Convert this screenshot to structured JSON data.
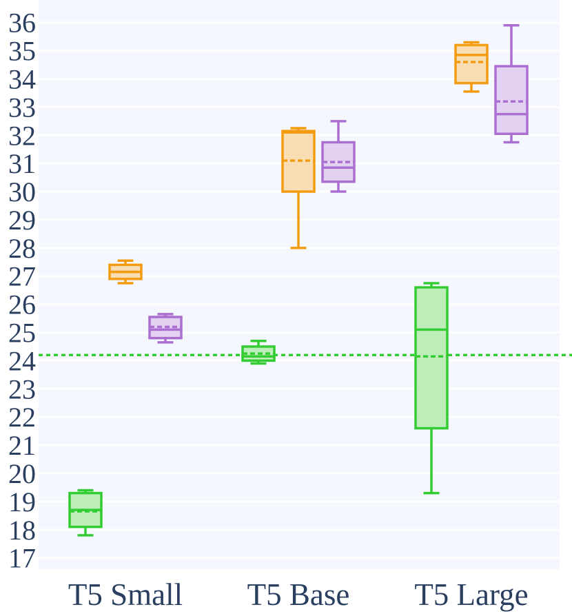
{
  "chart_data": {
    "type": "box",
    "title": "",
    "xlabel": "",
    "ylabel": "",
    "categories": [
      "T5 Small",
      "T5 Base",
      "T5 Large"
    ],
    "ylim": [
      16.6,
      36.8
    ],
    "y_ticks": [
      17,
      18,
      19,
      20,
      21,
      22,
      23,
      24,
      25,
      26,
      27,
      28,
      29,
      30,
      31,
      32,
      33,
      34,
      35,
      36
    ],
    "grid": true,
    "legend": "none",
    "reference_line": {
      "y": 24.2,
      "style": "dotted",
      "color": "#33cc33"
    },
    "series": [
      {
        "color": "#33cc33",
        "fill": "#bdeeba",
        "boxes": [
          {
            "category": "T5 Small",
            "min": 17.8,
            "q1": 18.1,
            "median": 18.7,
            "q3": 19.3,
            "max": 19.4,
            "mean": 18.65
          },
          {
            "category": "T5 Base",
            "min": 23.9,
            "q1": 24.0,
            "median": 24.15,
            "q3": 24.5,
            "max": 24.7,
            "mean": 24.25
          },
          {
            "category": "T5 Large",
            "min": 19.3,
            "q1": 21.6,
            "median": 25.1,
            "q3": 26.6,
            "max": 26.75,
            "mean": 24.15
          }
        ]
      },
      {
        "color": "#f39c12",
        "fill": "#f9ddb3",
        "boxes": [
          {
            "category": "T5 Small",
            "min": 26.75,
            "q1": 26.9,
            "median": 27.15,
            "q3": 27.4,
            "max": 27.55,
            "mean": 27.15
          },
          {
            "category": "T5 Base",
            "min": 28.0,
            "q1": 30.0,
            "median": 32.1,
            "q3": 32.15,
            "max": 32.25,
            "mean": 31.1
          },
          {
            "category": "T5 Large",
            "min": 33.55,
            "q1": 33.85,
            "median": 34.85,
            "q3": 35.2,
            "max": 35.3,
            "mean": 34.6
          }
        ]
      },
      {
        "color": "#ab6fd1",
        "fill": "#e2d1f1",
        "boxes": [
          {
            "category": "T5 Small",
            "min": 24.65,
            "q1": 24.8,
            "median": 25.1,
            "q3": 25.55,
            "max": 25.65,
            "mean": 25.2
          },
          {
            "category": "T5 Base",
            "min": 30.0,
            "q1": 30.35,
            "median": 30.85,
            "q3": 31.75,
            "max": 32.5,
            "mean": 31.05
          },
          {
            "category": "T5 Large",
            "min": 31.75,
            "q1": 32.05,
            "median": 32.75,
            "q3": 34.45,
            "max": 35.9,
            "mean": 33.2
          }
        ]
      }
    ]
  }
}
